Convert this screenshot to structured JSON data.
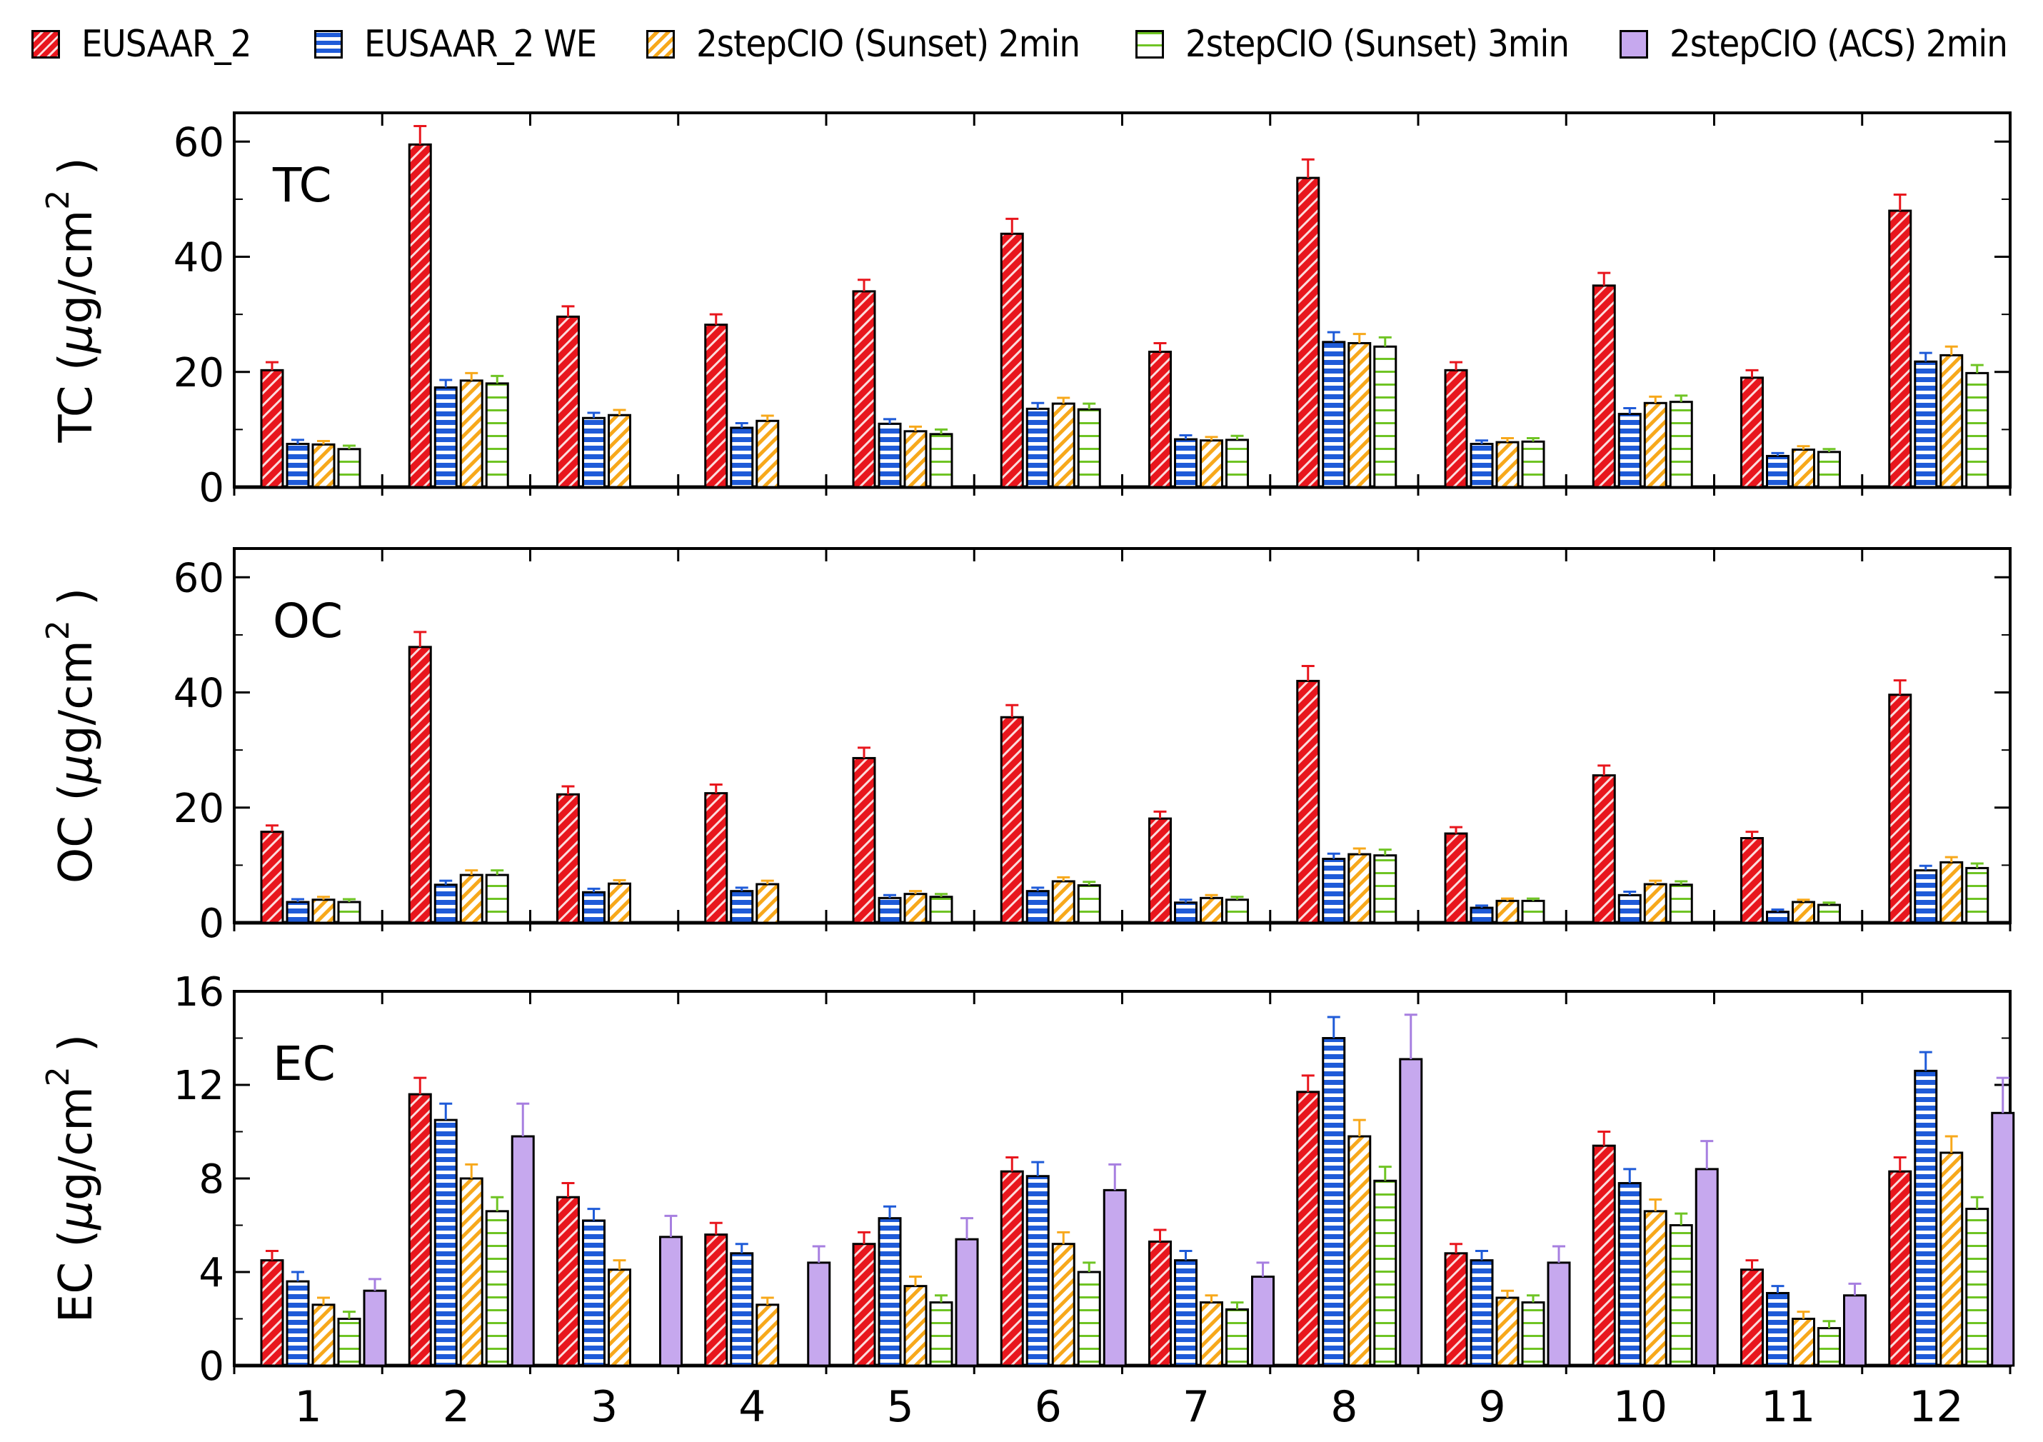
{
  "legend": [
    {
      "name": "EUSAAR_2",
      "color": "#e8161d",
      "pattern": "diag-white"
    },
    {
      "name": "EUSAAR_2 WE",
      "color": "#1f5bd8",
      "pattern": "horizontal"
    },
    {
      "name": "2stepCIO (Sunset) 2min",
      "color": "#f7a81b",
      "pattern": "diag-color"
    },
    {
      "name": "2stepCIO (Sunset) 3min",
      "color": "#6fc424",
      "pattern": "horizontal-sparse"
    },
    {
      "name": "2stepCIO (ACS) 2min",
      "color": "#c6a8ee",
      "pattern": "solid"
    }
  ],
  "chart_data": [
    {
      "type": "bar",
      "panel_label": "TC",
      "ylabel_prefix": "TC (",
      "ylabel_mu": "μ",
      "ylabel_unit": "g/cm",
      "ylabel_sup": "2",
      "ylabel_suffix": ")",
      "ylim": [
        0,
        65
      ],
      "yticks": [
        0,
        20,
        40,
        60
      ],
      "categories": [
        "1",
        "2",
        "3",
        "4",
        "5",
        "6",
        "7",
        "8",
        "9",
        "10",
        "11",
        "12"
      ],
      "series": [
        {
          "name": "EUSAAR_2",
          "values": [
            20.3,
            59.5,
            29.6,
            28.2,
            34.0,
            44.0,
            23.5,
            53.7,
            20.3,
            35.0,
            19.0,
            48.0
          ],
          "errors": [
            1.4,
            3.2,
            1.8,
            1.8,
            2.0,
            2.6,
            1.5,
            3.2,
            1.4,
            2.2,
            1.3,
            2.8
          ]
        },
        {
          "name": "EUSAAR_2 WE",
          "values": [
            7.5,
            17.3,
            12.0,
            10.3,
            11.0,
            13.6,
            8.3,
            25.2,
            7.5,
            12.7,
            5.4,
            21.8
          ],
          "errors": [
            0.7,
            1.3,
            0.9,
            0.8,
            0.8,
            1.0,
            0.7,
            1.7,
            0.6,
            1.0,
            0.5,
            1.5
          ]
        },
        {
          "name": "2stepCIO (Sunset) 2min",
          "values": [
            7.4,
            18.5,
            12.5,
            11.5,
            9.7,
            14.5,
            8.1,
            25.0,
            7.8,
            14.6,
            6.5,
            22.9
          ],
          "errors": [
            0.6,
            1.3,
            0.9,
            0.9,
            0.8,
            1.0,
            0.6,
            1.6,
            0.7,
            1.1,
            0.6,
            1.5
          ]
        },
        {
          "name": "2stepCIO (Sunset) 3min",
          "values": [
            6.6,
            18.0,
            null,
            null,
            9.2,
            13.5,
            8.2,
            24.4,
            7.9,
            14.8,
            6.1,
            19.8
          ],
          "errors": [
            0.6,
            1.3,
            null,
            null,
            0.8,
            1.0,
            0.7,
            1.6,
            0.6,
            1.1,
            0.5,
            1.4
          ]
        }
      ]
    },
    {
      "type": "bar",
      "panel_label": "OC",
      "ylabel_prefix": "OC (",
      "ylabel_mu": "μ",
      "ylabel_unit": "g/cm",
      "ylabel_sup": "2",
      "ylabel_suffix": ")",
      "ylim": [
        0,
        65
      ],
      "yticks": [
        0,
        20,
        40,
        60
      ],
      "categories": [
        "1",
        "2",
        "3",
        "4",
        "5",
        "6",
        "7",
        "8",
        "9",
        "10",
        "11",
        "12"
      ],
      "series": [
        {
          "name": "EUSAAR_2",
          "values": [
            15.8,
            47.9,
            22.3,
            22.5,
            28.6,
            35.7,
            18.1,
            42.0,
            15.5,
            25.6,
            14.7,
            39.6
          ],
          "errors": [
            1.1,
            2.6,
            1.4,
            1.5,
            1.8,
            2.1,
            1.2,
            2.6,
            1.1,
            1.7,
            1.1,
            2.5
          ]
        },
        {
          "name": "EUSAAR_2 WE",
          "values": [
            3.6,
            6.6,
            5.3,
            5.5,
            4.3,
            5.5,
            3.5,
            11.1,
            2.6,
            4.8,
            1.9,
            9.1
          ],
          "errors": [
            0.5,
            0.7,
            0.6,
            0.6,
            0.5,
            0.6,
            0.5,
            0.9,
            0.4,
            0.6,
            0.4,
            0.8
          ]
        },
        {
          "name": "2stepCIO (Sunset) 2min",
          "values": [
            4.0,
            8.3,
            6.8,
            6.7,
            5.0,
            7.2,
            4.3,
            11.9,
            3.8,
            6.7,
            3.6,
            10.5
          ],
          "errors": [
            0.5,
            0.8,
            0.6,
            0.6,
            0.5,
            0.7,
            0.5,
            1.0,
            0.4,
            0.6,
            0.4,
            0.9
          ]
        },
        {
          "name": "2stepCIO (Sunset) 3min",
          "values": [
            3.6,
            8.3,
            null,
            null,
            4.5,
            6.5,
            4.0,
            11.7,
            3.8,
            6.6,
            3.1,
            9.5
          ],
          "errors": [
            0.5,
            0.8,
            null,
            null,
            0.5,
            0.6,
            0.5,
            1.0,
            0.4,
            0.6,
            0.4,
            0.8
          ]
        }
      ]
    },
    {
      "type": "bar",
      "panel_label": "EC",
      "ylabel_prefix": "EC (",
      "ylabel_mu": "μ",
      "ylabel_unit": "g/cm",
      "ylabel_sup": "2",
      "ylabel_suffix": ")",
      "ylim": [
        0,
        16
      ],
      "yticks": [
        0,
        4,
        8,
        12,
        16
      ],
      "categories": [
        "1",
        "2",
        "3",
        "4",
        "5",
        "6",
        "7",
        "8",
        "9",
        "10",
        "11",
        "12"
      ],
      "series": [
        {
          "name": "EUSAAR_2",
          "values": [
            4.5,
            11.6,
            7.2,
            5.6,
            5.2,
            8.3,
            5.3,
            11.7,
            4.8,
            9.4,
            4.1,
            8.3
          ],
          "errors": [
            0.4,
            0.7,
            0.6,
            0.5,
            0.5,
            0.6,
            0.5,
            0.7,
            0.4,
            0.6,
            0.4,
            0.6
          ]
        },
        {
          "name": "EUSAAR_2 WE",
          "values": [
            3.6,
            10.5,
            6.2,
            4.8,
            6.3,
            8.1,
            4.5,
            14.0,
            4.5,
            7.8,
            3.1,
            12.6
          ],
          "errors": [
            0.4,
            0.7,
            0.5,
            0.4,
            0.5,
            0.6,
            0.4,
            0.9,
            0.4,
            0.6,
            0.3,
            0.8
          ]
        },
        {
          "name": "2stepCIO (Sunset) 2min",
          "values": [
            2.6,
            8.0,
            4.1,
            2.6,
            3.4,
            5.2,
            2.7,
            9.8,
            2.9,
            6.6,
            2.0,
            9.1
          ],
          "errors": [
            0.3,
            0.6,
            0.4,
            0.3,
            0.4,
            0.5,
            0.3,
            0.7,
            0.3,
            0.5,
            0.3,
            0.7
          ]
        },
        {
          "name": "2stepCIO (Sunset) 3min",
          "values": [
            2.0,
            6.6,
            null,
            null,
            2.7,
            4.0,
            2.4,
            7.9,
            2.7,
            6.0,
            1.6,
            6.7
          ],
          "errors": [
            0.3,
            0.6,
            null,
            null,
            0.3,
            0.4,
            0.3,
            0.6,
            0.3,
            0.5,
            0.3,
            0.5
          ]
        },
        {
          "name": "2stepCIO (ACS) 2min",
          "values": [
            3.2,
            9.8,
            5.5,
            4.4,
            5.4,
            7.5,
            3.8,
            13.1,
            4.4,
            8.4,
            3.0,
            10.8
          ],
          "errors": [
            0.5,
            1.4,
            0.9,
            0.7,
            0.9,
            1.1,
            0.6,
            1.9,
            0.7,
            1.2,
            0.5,
            1.5
          ]
        }
      ]
    }
  ]
}
